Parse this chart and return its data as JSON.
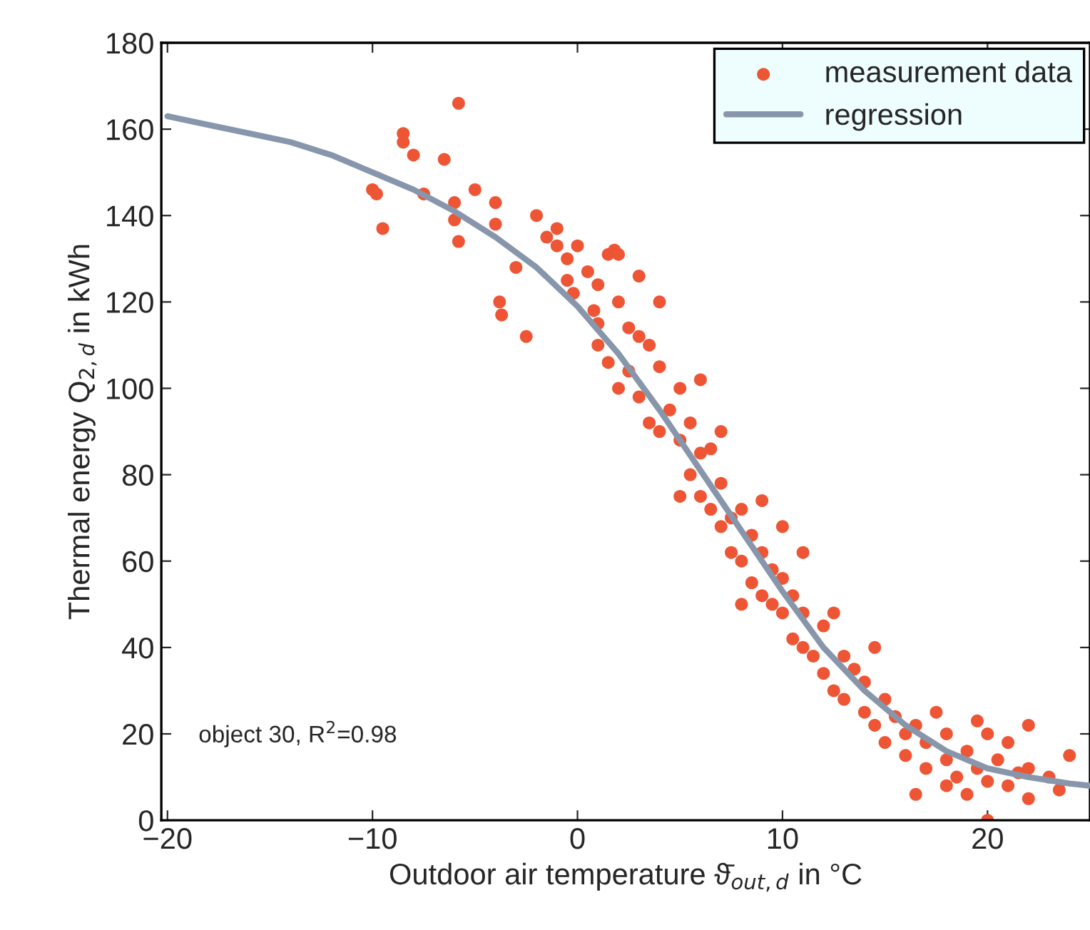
{
  "chart_data": {
    "type": "scatter",
    "xlabel": "Outdoor air temperature ϑ̄$_{out,d}$ in °C",
    "ylabel": "Thermal energy Q$_{2,d}$ in kWh",
    "annotations": [
      "object 30, R$^{2}$=0.98"
    ],
    "xlim": [
      -20.3,
      25
    ],
    "xticks": [
      {
        "value": -20,
        "label": "−20"
      },
      {
        "value": -10,
        "label": "−10"
      },
      0,
      10,
      20
    ],
    "ylim": [
      0,
      180
    ],
    "yticks": [
      0,
      20,
      40,
      60,
      80,
      100,
      120,
      140,
      160,
      180
    ],
    "grid": false,
    "legend": "top right",
    "marker": "circle",
    "series": [
      {
        "name": "measurement data",
        "color": "#ee5535",
        "x": [
          -10,
          -9.8,
          -9.5,
          -8.5,
          -8.5,
          -8,
          -7.5,
          -6.5,
          -6,
          -6,
          -5.8,
          -5.8,
          -5,
          -4,
          -4,
          -3.8,
          -3.7,
          -3,
          -2.5,
          -2,
          -1.5,
          -1,
          -1,
          -0.5,
          0,
          0.5,
          1,
          1.5,
          1.8,
          2,
          2.5,
          0.8,
          -0.2,
          1,
          1.5,
          2,
          2.5,
          3,
          3.5,
          3,
          3.5,
          4,
          4,
          4.5,
          5,
          5,
          5.5,
          5.5,
          6,
          6,
          6.5,
          6.5,
          7,
          7,
          7.5,
          7.5,
          8,
          8,
          8.5,
          8.5,
          9,
          9,
          9.5,
          9.5,
          10,
          10,
          10.5,
          10.5,
          11,
          11,
          11.5,
          12,
          12,
          12.5,
          13,
          13,
          13.5,
          14,
          14,
          14.5,
          15,
          15,
          15.5,
          16,
          16,
          16.5,
          16.5,
          17,
          17,
          17.5,
          18,
          18,
          18,
          18.5,
          19,
          19,
          19.5,
          20,
          20,
          20,
          20.5,
          21,
          21,
          22,
          22,
          22,
          23,
          24,
          23.5,
          21.5,
          19.5,
          14.5,
          9,
          7,
          6,
          11,
          12.5,
          3,
          5,
          8,
          10,
          -0.5,
          1,
          2,
          4
        ],
        "values": [
          146,
          145,
          137,
          159,
          157,
          154,
          145,
          153,
          143,
          139,
          166,
          134,
          146,
          143,
          138,
          120,
          117,
          128,
          112,
          140,
          135,
          133,
          137,
          130,
          133,
          127,
          124,
          131,
          132,
          120,
          114,
          118,
          122,
          110,
          106,
          100,
          104,
          112,
          110,
          98,
          92,
          90,
          105,
          95,
          88,
          100,
          92,
          80,
          85,
          75,
          86,
          72,
          78,
          68,
          70,
          62,
          72,
          60,
          55,
          66,
          62,
          52,
          50,
          58,
          48,
          56,
          42,
          52,
          40,
          48,
          38,
          45,
          34,
          30,
          38,
          28,
          35,
          25,
          32,
          22,
          28,
          18,
          24,
          15,
          20,
          22,
          6,
          12,
          18,
          25,
          8,
          14,
          20,
          10,
          6,
          16,
          12,
          0,
          9,
          20,
          14,
          8,
          18,
          5,
          12,
          22,
          10,
          15,
          7,
          11,
          23,
          40,
          74,
          90,
          102,
          62,
          48,
          126,
          75,
          50,
          68,
          125,
          115,
          131,
          120
        ]
      },
      {
        "name": "regression",
        "type": "line",
        "color": "#8796ab",
        "marker": "none",
        "x": [
          -20,
          -18,
          -16,
          -14,
          -12,
          -10,
          -8,
          -6,
          -4,
          -2,
          0,
          2,
          4,
          6,
          8,
          10,
          12,
          14,
          16,
          18,
          20,
          22,
          24,
          25
        ],
        "values": [
          163,
          161,
          159,
          157,
          154,
          150,
          146,
          141,
          135,
          128,
          119,
          108,
          95,
          81,
          67,
          53,
          40,
          30,
          22,
          16,
          12,
          10,
          8.5,
          8
        ]
      }
    ]
  }
}
